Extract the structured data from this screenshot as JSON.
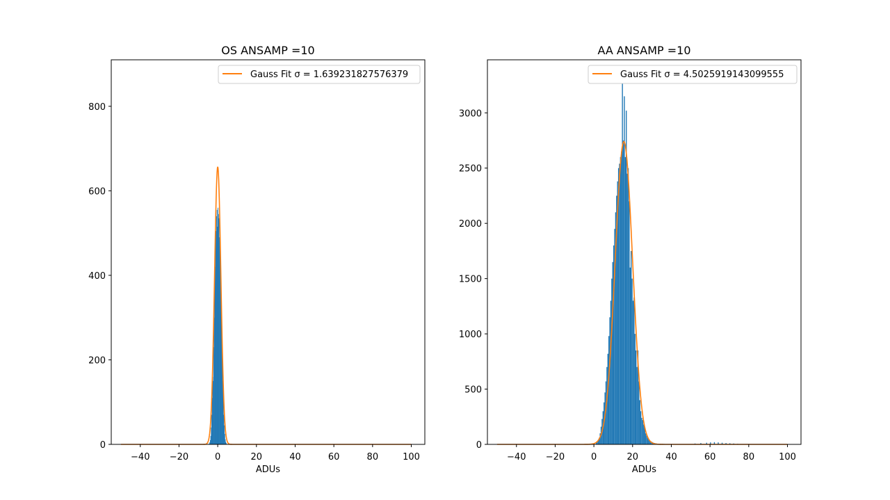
{
  "chart_data": [
    {
      "type": "bar",
      "title": "OS ANSAMP =10",
      "xlabel": "ADUs",
      "ylabel": "",
      "xlim": [
        -55,
        107
      ],
      "ylim": [
        0,
        910
      ],
      "xticks": [
        -40,
        -20,
        0,
        20,
        40,
        60,
        80,
        100
      ],
      "yticks": [
        0,
        200,
        400,
        600,
        800
      ],
      "x_tick_labels": [
        "−40",
        "−20",
        "0",
        "20",
        "40",
        "60",
        "80",
        "100"
      ],
      "y_tick_labels": [
        "0",
        "200",
        "400",
        "600",
        "800"
      ],
      "legend": {
        "label": "Gauss Fit σ = 1.639231827576379",
        "placement": "upper right"
      },
      "hist": {
        "bin_width": 0.25,
        "x": [
          -5,
          -4.75,
          -4.5,
          -4.25,
          -4,
          -3.75,
          -3.5,
          -3.25,
          -3,
          -2.75,
          -2.5,
          -2.25,
          -2,
          -1.75,
          -1.5,
          -1.25,
          -1,
          -0.75,
          -0.5,
          -0.25,
          0,
          0.25,
          0.5,
          0.75,
          1,
          1.25,
          1.5,
          1.75,
          2,
          2.25,
          2.5,
          2.75,
          3,
          3.25,
          3.5,
          3.75,
          4,
          4.25,
          4.5,
          4.75
        ],
        "values": [
          0,
          1,
          2,
          5,
          10,
          20,
          40,
          70,
          110,
          160,
          150,
          230,
          300,
          380,
          420,
          500,
          505,
          540,
          555,
          515,
          560,
          545,
          535,
          490,
          470,
          430,
          380,
          310,
          250,
          200,
          150,
          110,
          70,
          45,
          25,
          12,
          6,
          3,
          1,
          0
        ]
      },
      "fit": {
        "name": "Gauss Fit σ = 1.639231827576379",
        "amplitude": 657,
        "mu": 0,
        "sigma": 1.639231827576379,
        "x_range": [
          -50,
          100
        ]
      },
      "colors": {
        "hist": "#1f77b4",
        "fit": "#ff7f0e"
      }
    },
    {
      "type": "bar",
      "title": "AA ANSAMP =10",
      "xlabel": "ADUs",
      "ylabel": "",
      "xlim": [
        -55,
        107
      ],
      "ylim": [
        0,
        3480
      ],
      "xticks": [
        -40,
        -20,
        0,
        20,
        40,
        60,
        80,
        100
      ],
      "yticks": [
        0,
        500,
        1000,
        1500,
        2000,
        2500,
        3000
      ],
      "x_tick_labels": [
        "−40",
        "−20",
        "0",
        "20",
        "40",
        "60",
        "80",
        "100"
      ],
      "y_tick_labels": [
        "0",
        "500",
        "1000",
        "1500",
        "2000",
        "2500",
        "3000"
      ],
      "legend": {
        "label": "Gauss Fit σ = 4.5025919143099555",
        "placement": "upper right"
      },
      "hist": {
        "bin_width": 0.5,
        "x": [
          1,
          1.5,
          2,
          2.5,
          3,
          3.5,
          4,
          4.5,
          5,
          5.5,
          6,
          6.5,
          7,
          7.5,
          8,
          8.5,
          9,
          9.5,
          10,
          10.5,
          11,
          11.5,
          12,
          12.5,
          13,
          13.5,
          14,
          14.5,
          15,
          15.5,
          16,
          16.5,
          17,
          17.5,
          18,
          18.5,
          19,
          19.5,
          20,
          20.5,
          21,
          21.5,
          22,
          22.5,
          23,
          23.5,
          24,
          24.5,
          25,
          25.5,
          26,
          26.5,
          27,
          27.5,
          28,
          28.5,
          29,
          29.5,
          30,
          30.5,
          31,
          31.5,
          32,
          33,
          34,
          35,
          36,
          37,
          38,
          40,
          43,
          47,
          52,
          55,
          58,
          60,
          62,
          64,
          66,
          68,
          70,
          72,
          74,
          76,
          78
        ],
        "values": [
          15,
          25,
          40,
          60,
          100,
          160,
          230,
          300,
          380,
          470,
          570,
          700,
          820,
          980,
          1150,
          1300,
          1500,
          1650,
          1800,
          1950,
          2100,
          2250,
          2380,
          2500,
          2540,
          2600,
          2650,
          3300,
          2750,
          3150,
          2600,
          3020,
          2450,
          2500,
          2200,
          1600,
          1750,
          1500,
          1300,
          1330,
          1000,
          850,
          700,
          850,
          570,
          400,
          300,
          240,
          220,
          180,
          150,
          100,
          80,
          60,
          50,
          40,
          30,
          25,
          20,
          16,
          12,
          10,
          8,
          6,
          5,
          4,
          4,
          3,
          3,
          2,
          2,
          3,
          8,
          12,
          15,
          18,
          20,
          18,
          15,
          12,
          10,
          8,
          5,
          3,
          2
        ]
      },
      "fit": {
        "name": "Gauss Fit σ = 4.5025919143099555",
        "amplitude": 2740,
        "mu": 15.5,
        "sigma": 4.5025919143099555,
        "x_range": [
          -50,
          100
        ]
      },
      "colors": {
        "hist": "#1f77b4",
        "fit": "#ff7f0e"
      }
    }
  ]
}
